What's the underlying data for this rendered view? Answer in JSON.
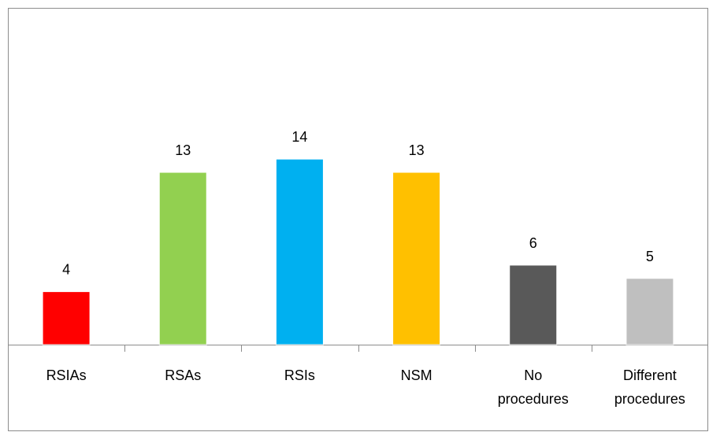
{
  "chart_data": {
    "type": "bar",
    "categories": [
      "RSIAs",
      "RSAs",
      "RSIs",
      "NSM",
      "No procedures",
      "Different procedures"
    ],
    "values": [
      4,
      13,
      14,
      13,
      6,
      5
    ],
    "colors": [
      "#ff0000",
      "#92d050",
      "#00b0f0",
      "#ffc000",
      "#595959",
      "#bfbfbf"
    ]
  }
}
